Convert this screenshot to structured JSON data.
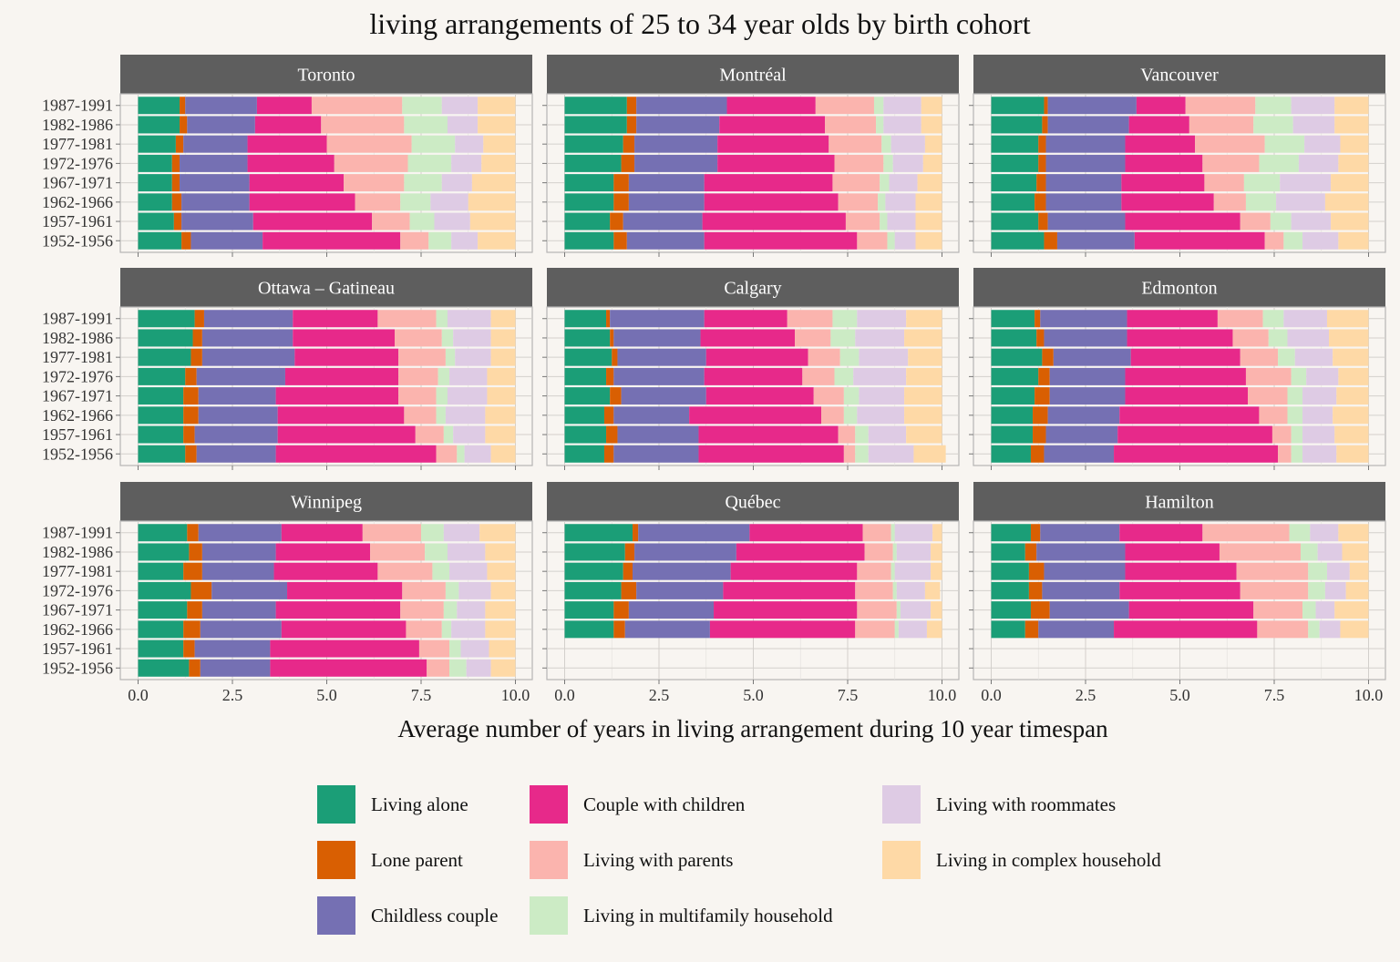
{
  "chart_data": {
    "type": "bar",
    "orientation": "horizontal",
    "stacked": true,
    "title": "living arrangements of 25 to 34 year olds by birth cohort",
    "xlabel": "Average number of years in living arrangement during 10 year timespan",
    "ylabel": "",
    "xlim": [
      0,
      10
    ],
    "xticks": [
      "0.0",
      "2.5",
      "5.0",
      "7.5",
      "10.0"
    ],
    "grid": true,
    "legend_position": "bottom",
    "cohorts": [
      "1987-1991",
      "1982-1986",
      "1977-1981",
      "1972-1976",
      "1967-1971",
      "1962-1966",
      "1957-1961",
      "1952-1956"
    ],
    "categories": [
      {
        "name": "Living alone",
        "color": "#1b9e77"
      },
      {
        "name": "Lone parent",
        "color": "#d95f02"
      },
      {
        "name": "Childless couple",
        "color": "#7570b3"
      },
      {
        "name": "Couple with children",
        "color": "#e7298a"
      },
      {
        "name": "Living with parents",
        "color": "#fbb4ae"
      },
      {
        "name": "Living in multifamily household",
        "color": "#ccebc5"
      },
      {
        "name": "Living with roommates",
        "color": "#decbe4"
      },
      {
        "name": "Living in complex household",
        "color": "#fed9a6"
      }
    ],
    "panels": [
      {
        "name": "Toronto",
        "values": [
          [
            1.1,
            0.15,
            1.9,
            1.45,
            2.4,
            1.05,
            0.95,
            1.0
          ],
          [
            1.1,
            0.2,
            1.8,
            1.75,
            2.2,
            1.15,
            0.8,
            1.0
          ],
          [
            1.0,
            0.2,
            1.7,
            2.1,
            2.25,
            1.15,
            0.75,
            0.85
          ],
          [
            0.9,
            0.2,
            1.8,
            2.3,
            1.95,
            1.15,
            0.8,
            0.9
          ],
          [
            0.9,
            0.2,
            1.85,
            2.5,
            1.6,
            1.0,
            0.8,
            1.15
          ],
          [
            0.9,
            0.25,
            1.8,
            2.8,
            1.2,
            0.8,
            1.0,
            1.25
          ],
          [
            0.95,
            0.2,
            1.9,
            3.15,
            1.0,
            0.65,
            0.95,
            1.2
          ],
          [
            1.15,
            0.25,
            1.9,
            3.65,
            0.75,
            0.6,
            0.7,
            1.0
          ]
        ]
      },
      {
        "name": "Montréal",
        "values": [
          [
            1.65,
            0.25,
            2.4,
            2.35,
            1.55,
            0.25,
            1.0,
            0.55
          ],
          [
            1.65,
            0.25,
            2.2,
            2.8,
            1.35,
            0.2,
            1.0,
            0.55
          ],
          [
            1.55,
            0.3,
            2.2,
            2.95,
            1.4,
            0.25,
            0.9,
            0.45
          ],
          [
            1.5,
            0.35,
            2.2,
            3.1,
            1.3,
            0.25,
            0.8,
            0.5
          ],
          [
            1.3,
            0.4,
            2.0,
            3.4,
            1.25,
            0.25,
            0.75,
            0.65
          ],
          [
            1.3,
            0.4,
            2.0,
            3.55,
            1.05,
            0.2,
            0.8,
            0.7
          ],
          [
            1.2,
            0.35,
            2.1,
            3.8,
            0.9,
            0.2,
            0.75,
            0.7
          ],
          [
            1.3,
            0.35,
            2.05,
            4.05,
            0.8,
            0.2,
            0.55,
            0.7
          ]
        ]
      },
      {
        "name": "Vancouver",
        "values": [
          [
            1.4,
            0.1,
            2.35,
            1.3,
            1.85,
            0.95,
            1.15,
            0.9
          ],
          [
            1.35,
            0.15,
            2.15,
            1.6,
            1.7,
            1.05,
            1.1,
            0.9
          ],
          [
            1.25,
            0.2,
            2.1,
            1.85,
            1.85,
            1.05,
            0.95,
            0.75
          ],
          [
            1.25,
            0.2,
            2.1,
            2.05,
            1.5,
            1.05,
            1.05,
            0.8
          ],
          [
            1.2,
            0.25,
            2.0,
            2.2,
            1.05,
            0.95,
            1.35,
            1.0
          ],
          [
            1.15,
            0.3,
            2.0,
            2.45,
            0.85,
            0.8,
            1.3,
            1.15
          ],
          [
            1.25,
            0.25,
            2.05,
            3.05,
            0.8,
            0.55,
            1.05,
            1.0
          ],
          [
            1.4,
            0.35,
            2.05,
            3.45,
            0.5,
            0.5,
            0.95,
            0.8
          ]
        ]
      },
      {
        "name": "Ottawa – Gatineau",
        "values": [
          [
            1.5,
            0.25,
            2.35,
            2.25,
            1.55,
            0.3,
            1.15,
            0.65
          ],
          [
            1.45,
            0.25,
            2.4,
            2.7,
            1.25,
            0.3,
            1.0,
            0.65
          ],
          [
            1.4,
            0.3,
            2.45,
            2.75,
            1.25,
            0.25,
            0.95,
            0.65
          ],
          [
            1.25,
            0.3,
            2.35,
            3.0,
            1.05,
            0.3,
            1.0,
            0.75
          ],
          [
            1.2,
            0.4,
            2.05,
            3.25,
            1.0,
            0.3,
            1.05,
            0.75
          ],
          [
            1.2,
            0.4,
            2.1,
            3.35,
            0.85,
            0.25,
            1.05,
            0.8
          ],
          [
            1.2,
            0.3,
            2.2,
            3.65,
            0.75,
            0.25,
            0.85,
            0.8
          ],
          [
            1.25,
            0.3,
            2.1,
            4.25,
            0.55,
            0.2,
            0.7,
            0.65
          ]
        ]
      },
      {
        "name": "Calgary",
        "values": [
          [
            1.1,
            0.1,
            2.5,
            2.2,
            1.2,
            0.65,
            1.3,
            0.95
          ],
          [
            1.2,
            0.1,
            2.3,
            2.5,
            0.95,
            0.65,
            1.3,
            1.0
          ],
          [
            1.25,
            0.15,
            2.35,
            2.7,
            0.85,
            0.5,
            1.3,
            0.9
          ],
          [
            1.1,
            0.2,
            2.4,
            2.6,
            0.85,
            0.5,
            1.4,
            0.95
          ],
          [
            1.2,
            0.3,
            2.25,
            2.85,
            0.8,
            0.4,
            1.2,
            1.0
          ],
          [
            1.05,
            0.25,
            2.0,
            3.5,
            0.6,
            0.35,
            1.25,
            1.0
          ],
          [
            1.1,
            0.3,
            2.15,
            3.7,
            0.45,
            0.35,
            1.0,
            0.95
          ],
          [
            1.05,
            0.25,
            2.25,
            3.85,
            0.3,
            0.35,
            1.2,
            0.85
          ]
        ]
      },
      {
        "name": "Edmonton",
        "values": [
          [
            1.15,
            0.15,
            2.3,
            2.4,
            1.2,
            0.55,
            1.15,
            1.1
          ],
          [
            1.2,
            0.2,
            2.2,
            2.8,
            0.95,
            0.5,
            1.1,
            1.05
          ],
          [
            1.35,
            0.3,
            2.05,
            2.9,
            1.0,
            0.45,
            1.0,
            0.95
          ],
          [
            1.25,
            0.3,
            2.0,
            3.2,
            1.2,
            0.4,
            0.85,
            0.8
          ],
          [
            1.15,
            0.4,
            2.0,
            3.25,
            1.05,
            0.4,
            0.9,
            0.85
          ],
          [
            1.1,
            0.4,
            1.9,
            3.7,
            0.75,
            0.4,
            0.8,
            0.95
          ],
          [
            1.1,
            0.35,
            1.9,
            4.1,
            0.5,
            0.3,
            0.85,
            0.9
          ],
          [
            1.05,
            0.35,
            1.85,
            4.35,
            0.35,
            0.3,
            0.9,
            0.85
          ]
        ]
      },
      {
        "name": "Winnipeg",
        "values": [
          [
            1.3,
            0.3,
            2.2,
            2.15,
            1.55,
            0.6,
            0.95,
            0.95
          ],
          [
            1.35,
            0.35,
            1.95,
            2.5,
            1.45,
            0.6,
            1.0,
            0.8
          ],
          [
            1.2,
            0.5,
            1.9,
            2.75,
            1.45,
            0.45,
            1.0,
            0.75
          ],
          [
            1.4,
            0.55,
            2.0,
            3.05,
            1.15,
            0.35,
            0.85,
            0.65
          ],
          [
            1.3,
            0.4,
            1.95,
            3.3,
            1.15,
            0.35,
            0.75,
            0.8
          ],
          [
            1.2,
            0.45,
            2.15,
            3.3,
            0.95,
            0.25,
            0.9,
            0.8
          ],
          [
            1.2,
            0.3,
            2.0,
            3.95,
            0.8,
            0.3,
            0.75,
            0.7
          ],
          [
            1.35,
            0.3,
            1.85,
            4.15,
            0.6,
            0.45,
            0.65,
            0.65
          ]
        ]
      },
      {
        "name": "Québec",
        "values": [
          [
            1.8,
            0.15,
            2.95,
            3.0,
            0.75,
            0.1,
            1.0,
            0.25
          ],
          [
            1.6,
            0.25,
            2.7,
            3.4,
            0.75,
            0.1,
            0.9,
            0.3
          ],
          [
            1.55,
            0.25,
            2.6,
            3.35,
            0.9,
            0.1,
            0.95,
            0.3
          ],
          [
            1.5,
            0.4,
            2.3,
            3.5,
            1.0,
            0.1,
            0.75,
            0.4
          ],
          [
            1.3,
            0.4,
            2.25,
            3.8,
            1.05,
            0.1,
            0.8,
            0.3
          ],
          [
            1.3,
            0.3,
            2.25,
            3.85,
            1.05,
            0.1,
            0.75,
            0.4
          ]
        ]
      },
      {
        "name": "Hamilton",
        "values": [
          [
            1.05,
            0.25,
            2.1,
            2.2,
            2.3,
            0.55,
            0.75,
            0.8
          ],
          [
            0.9,
            0.3,
            2.35,
            2.5,
            2.15,
            0.45,
            0.65,
            0.7
          ],
          [
            1.0,
            0.4,
            2.15,
            2.95,
            1.9,
            0.5,
            0.6,
            0.5
          ],
          [
            1.0,
            0.35,
            2.05,
            3.2,
            1.8,
            0.45,
            0.55,
            0.6
          ],
          [
            1.05,
            0.5,
            2.1,
            3.3,
            1.3,
            0.35,
            0.5,
            0.9
          ],
          [
            0.9,
            0.35,
            2.0,
            3.8,
            1.35,
            0.3,
            0.55,
            0.75
          ]
        ]
      }
    ]
  }
}
